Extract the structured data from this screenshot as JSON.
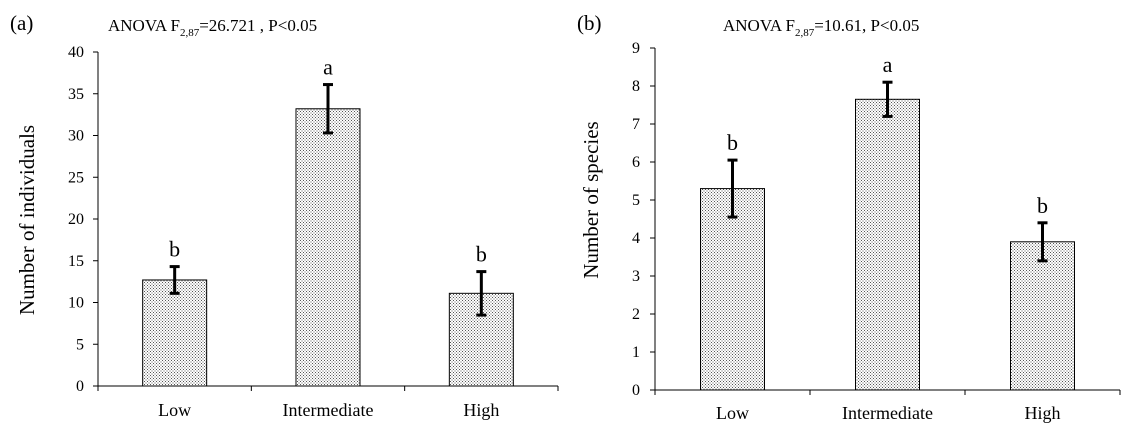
{
  "chart_data": [
    {
      "type": "bar",
      "panel_label": "(a)",
      "title": "ANOVA F",
      "title_subscript": "2,87",
      "title_suffix": "=26.721 , P<0.05",
      "xlabel": "",
      "ylabel": "Number of individuals",
      "categories": [
        "Low",
        "Intermediate",
        "High"
      ],
      "values": [
        12.7,
        33.2,
        11.1
      ],
      "errors": [
        1.6,
        2.9,
        2.6
      ],
      "letters": [
        "b",
        "a",
        "b"
      ],
      "ylim": [
        0,
        40
      ],
      "yticks": [
        0,
        5,
        10,
        15,
        20,
        25,
        30,
        35,
        40
      ],
      "grid": false,
      "bar_fill": "dotted",
      "bar_color": "#ffffff",
      "dot_color": "#555555"
    },
    {
      "type": "bar",
      "panel_label": "(b)",
      "title": "ANOVA F",
      "title_subscript": "2,87",
      "title_suffix": "=10.61, P<0.05",
      "xlabel": "",
      "ylabel": "Number of species",
      "categories": [
        "Low",
        "Intermediate",
        "High"
      ],
      "values": [
        5.3,
        7.65,
        3.9
      ],
      "errors": [
        0.75,
        0.45,
        0.5
      ],
      "letters": [
        "b",
        "a",
        "b"
      ],
      "ylim": [
        0,
        9
      ],
      "yticks": [
        0,
        1,
        2,
        3,
        4,
        5,
        6,
        7,
        8,
        9
      ],
      "grid": false,
      "bar_fill": "dotted",
      "bar_color": "#ffffff",
      "dot_color": "#555555"
    }
  ]
}
